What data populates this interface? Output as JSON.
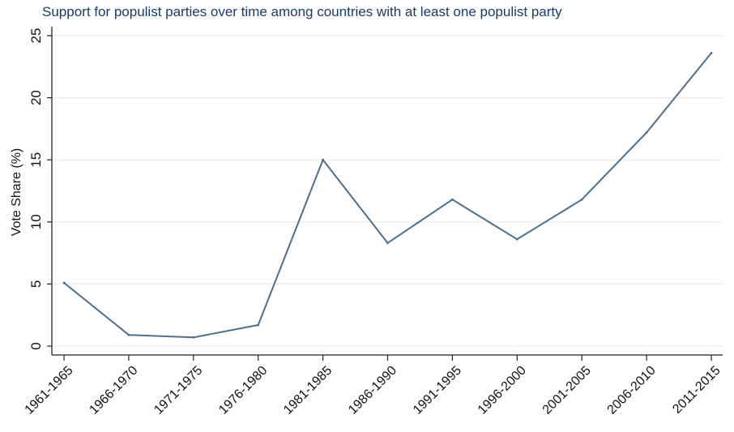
{
  "chart_data": {
    "type": "line",
    "title": "Support for populist parties over time among countries with at least one populist party",
    "xlabel": "",
    "ylabel": "Vote Share (%)",
    "categories": [
      "1961-1965",
      "1966-1970",
      "1971-1975",
      "1976-1980",
      "1981-1985",
      "1986-1990",
      "1991-1995",
      "1996-2000",
      "2001-2005",
      "2006-2010",
      "2011-2015"
    ],
    "series": [
      {
        "values": [
          5.1,
          0.9,
          0.7,
          1.7,
          15.0,
          8.3,
          11.8,
          8.6,
          11.8,
          17.2,
          23.6
        ]
      }
    ],
    "yticks": [
      0,
      5,
      10,
      15,
      20,
      25
    ],
    "ylim": [
      0,
      25
    ],
    "grid": "horizontal",
    "line_color": "#4a6f8f"
  }
}
